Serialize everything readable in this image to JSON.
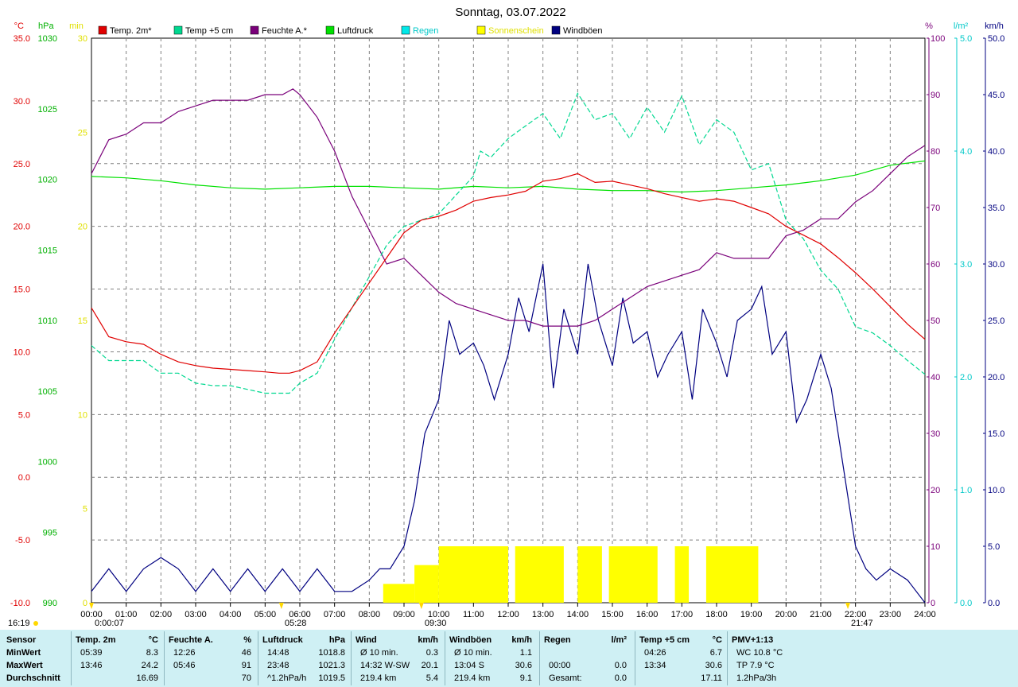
{
  "title": "Sonntag, 03.07.2022",
  "colors": {
    "temp2m": "#e00000",
    "temp5cm": "#00d890",
    "humidity": "#7a007a",
    "pressure": "#00e000",
    "rain": "#00e8e8",
    "sunshine": "#ffff00",
    "gusts": "#000080",
    "grid": "#808080",
    "stats_bg": "#cff0f4"
  },
  "axes": {
    "temp": {
      "unit": "°C",
      "min": -10,
      "max": 35,
      "ticks": [
        "35.0",
        "30.0",
        "25.0",
        "20.0",
        "15.0",
        "10.0",
        "5.0",
        "0.0",
        "-5.0",
        "-10.0"
      ]
    },
    "pressure": {
      "unit": "hPa",
      "min": 990,
      "max": 1030,
      "ticks": [
        "1030",
        "1025",
        "1020",
        "1015",
        "1010",
        "1005",
        "1000",
        "995",
        "990"
      ]
    },
    "sunshine": {
      "unit": "min",
      "min": 0,
      "max": 30,
      "ticks": [
        "30",
        "25",
        "20",
        "15",
        "10",
        "5",
        "0"
      ]
    },
    "humidity": {
      "unit": "%",
      "min": 0,
      "max": 100,
      "ticks": [
        "100",
        "90",
        "80",
        "70",
        "60",
        "50",
        "40",
        "30",
        "20",
        "10",
        "0"
      ]
    },
    "rain": {
      "unit": "l/m²",
      "min": 0,
      "max": 5,
      "ticks": [
        "5.0",
        "4.0",
        "3.0",
        "2.0",
        "1.0",
        "0.0"
      ]
    },
    "wind": {
      "unit": "km/h",
      "min": 0,
      "max": 50,
      "ticks": [
        "50.0",
        "45.0",
        "40.0",
        "35.0",
        "30.0",
        "25.0",
        "20.0",
        "15.0",
        "10.0",
        "5.0",
        "0.0"
      ]
    },
    "x_ticks": [
      "00:00",
      "01:00",
      "02:00",
      "03:00",
      "04:00",
      "05:00",
      "06:00",
      "07:00",
      "08:00",
      "09:00",
      "10:00",
      "11:00",
      "12:00",
      "13:00",
      "14:00",
      "15:00",
      "16:00",
      "17:00",
      "18:00",
      "19:00",
      "20:00",
      "21:00",
      "22:00",
      "23:00",
      "24:00"
    ]
  },
  "legend": [
    {
      "label": "Temp. 2m*",
      "key": "temp2m"
    },
    {
      "label": "Temp +5 cm",
      "key": "temp5cm"
    },
    {
      "label": "Feuchte A.*",
      "key": "humidity"
    },
    {
      "label": "Luftdruck",
      "key": "pressure"
    },
    {
      "label": "Regen",
      "key": "rain"
    },
    {
      "label": "Sonnenschein",
      "key": "sunshine"
    },
    {
      "label": "Windböen",
      "key": "gusts"
    }
  ],
  "time_marks": [
    {
      "label": "0:00:07",
      "hour": 0.0
    },
    {
      "label": "05:28",
      "hour": 5.47
    },
    {
      "label": "09:30",
      "hour": 9.5
    },
    {
      "label": "16:19",
      "hour": -1
    },
    {
      "label": "21:47",
      "hour": 21.78
    }
  ],
  "chart_data": {
    "type": "line",
    "x_unit": "hour",
    "series": [
      {
        "name": "Temp. 2m*",
        "axis": "temp",
        "x": [
          0,
          0.5,
          1,
          1.5,
          2,
          2.5,
          3,
          3.5,
          4,
          4.5,
          5,
          5.4,
          5.7,
          6,
          6.5,
          7,
          7.5,
          8,
          8.5,
          9,
          9.5,
          10,
          10.5,
          11,
          11.5,
          12,
          12.5,
          13,
          13.5,
          14,
          14.5,
          15,
          15.5,
          16,
          16.5,
          17,
          17.5,
          18,
          18.5,
          19,
          19.5,
          20,
          20.5,
          21,
          21.5,
          22,
          22.5,
          23,
          23.5,
          24
        ],
        "y": [
          13.5,
          11.2,
          10.8,
          10.6,
          9.8,
          9.2,
          8.9,
          8.7,
          8.6,
          8.5,
          8.4,
          8.3,
          8.3,
          8.5,
          9.2,
          11.5,
          13.5,
          15.5,
          17.5,
          19.5,
          20.5,
          20.8,
          21.3,
          22.0,
          22.3,
          22.5,
          22.8,
          23.6,
          23.8,
          24.2,
          23.5,
          23.6,
          23.3,
          23.0,
          22.6,
          22.3,
          22.0,
          22.2,
          22.0,
          21.5,
          21.0,
          20.0,
          19.3,
          18.6,
          17.5,
          16.3,
          15.0,
          13.6,
          12.2,
          11.0
        ]
      },
      {
        "name": "Temp +5 cm",
        "axis": "temp",
        "x": [
          0,
          0.5,
          1,
          1.5,
          2,
          2.5,
          3,
          3.5,
          4,
          4.5,
          5,
          5.4,
          5.7,
          6,
          6.5,
          7,
          7.5,
          8,
          8.5,
          9,
          9.5,
          10,
          10.5,
          11,
          11.2,
          11.5,
          12,
          12.5,
          13,
          13.5,
          14,
          14.5,
          15,
          15.5,
          16,
          16.5,
          17,
          17.5,
          18,
          18.5,
          19,
          19.5,
          20,
          20.5,
          21,
          21.5,
          22,
          22.5,
          23,
          23.5,
          24
        ],
        "y": [
          10.5,
          9.3,
          9.3,
          9.3,
          8.3,
          8.3,
          7.5,
          7.3,
          7.3,
          7.0,
          6.7,
          6.7,
          6.7,
          7.5,
          8.3,
          11.0,
          13.5,
          16.0,
          18.5,
          20.0,
          20.5,
          21.0,
          22.5,
          24.0,
          26.0,
          25.5,
          27.0,
          28.0,
          29.0,
          27.0,
          30.6,
          28.5,
          29.0,
          27.0,
          29.5,
          27.5,
          30.4,
          26.5,
          28.5,
          27.5,
          24.5,
          25.0,
          20.5,
          19.0,
          16.5,
          15.0,
          12.0,
          11.5,
          10.5,
          9.3,
          8.2
        ]
      },
      {
        "name": "Feuchte A.*",
        "axis": "humidity",
        "x": [
          0,
          0.5,
          1,
          1.5,
          2,
          2.5,
          3,
          3.5,
          4,
          4.5,
          5,
          5.5,
          5.8,
          6,
          6.5,
          7,
          7.5,
          8,
          8.5,
          9,
          9.5,
          10,
          10.5,
          11,
          11.5,
          12,
          12.5,
          13,
          13.5,
          14,
          14.5,
          15,
          15.5,
          16,
          16.5,
          17,
          17.5,
          18,
          18.5,
          19,
          19.5,
          20,
          20.5,
          21,
          21.5,
          22,
          22.5,
          23,
          23.5,
          24
        ],
        "y": [
          76,
          82,
          83,
          85,
          85,
          87,
          88,
          89,
          89,
          89,
          90,
          90,
          91,
          90,
          86,
          80,
          72,
          66,
          60,
          61,
          58,
          55,
          53,
          52,
          51,
          50,
          50,
          49,
          49,
          49,
          50,
          52,
          54,
          56,
          57,
          58,
          59,
          62,
          61,
          61,
          61,
          65,
          66,
          68,
          68,
          71,
          73,
          76,
          79,
          81
        ]
      },
      {
        "name": "Luftdruck",
        "axis": "pressure",
        "x": [
          0,
          1,
          2,
          3,
          4,
          5,
          6,
          7,
          8,
          9,
          10,
          11,
          12,
          13,
          14,
          15,
          16,
          17,
          18,
          19,
          20,
          21,
          22,
          23,
          24
        ],
        "y": [
          1020.2,
          1020.1,
          1019.9,
          1019.6,
          1019.4,
          1019.3,
          1019.4,
          1019.5,
          1019.5,
          1019.4,
          1019.3,
          1019.5,
          1019.4,
          1019.5,
          1019.3,
          1019.2,
          1019.2,
          1019.1,
          1019.2,
          1019.4,
          1019.6,
          1019.9,
          1020.3,
          1021.0,
          1021.3
        ]
      },
      {
        "name": "Windböen",
        "axis": "wind",
        "x": [
          0,
          0.5,
          1,
          1.5,
          2,
          2.5,
          3,
          3.5,
          4,
          4.5,
          5,
          5.5,
          6,
          6.5,
          7,
          7.5,
          8,
          8.3,
          8.6,
          9,
          9.3,
          9.6,
          10,
          10.3,
          10.6,
          11,
          11.3,
          11.6,
          12,
          12.3,
          12.6,
          13,
          13.3,
          13.6,
          14,
          14.3,
          14.6,
          15,
          15.3,
          15.6,
          16,
          16.3,
          16.6,
          17,
          17.3,
          17.6,
          18,
          18.3,
          18.6,
          19,
          19.3,
          19.6,
          20,
          20.3,
          20.6,
          21,
          21.3,
          21.6,
          22,
          22.3,
          22.6,
          23,
          23.5,
          24
        ],
        "y": [
          1,
          3,
          1,
          3,
          4,
          3,
          1,
          3,
          1,
          3,
          1,
          3,
          1,
          3,
          1,
          1,
          2,
          3,
          3,
          5,
          9,
          15,
          18,
          25,
          22,
          23,
          21,
          18,
          22,
          27,
          24,
          30,
          19,
          26,
          22,
          30,
          25,
          21,
          27,
          23,
          24,
          20,
          22,
          24,
          18,
          26,
          23,
          20,
          25,
          26,
          28,
          22,
          24,
          16,
          18,
          22,
          19,
          13,
          5,
          3,
          2,
          3,
          2,
          0
        ]
      }
    ],
    "sunshine_bars": {
      "axis": "sunshine",
      "ranges": [
        [
          8.4,
          9.3,
          1
        ],
        [
          9.3,
          10.0,
          2
        ],
        [
          10.0,
          12.0,
          3
        ],
        [
          12.2,
          13.6,
          3
        ],
        [
          14.0,
          14.7,
          3
        ],
        [
          14.9,
          16.3,
          3
        ],
        [
          16.8,
          17.2,
          3
        ],
        [
          17.7,
          19.2,
          3
        ]
      ],
      "y_top": 2
    }
  },
  "stats": {
    "columns": [
      {
        "header": [
          "Sensor",
          ""
        ],
        "rows": [
          [
            "MinWert",
            ""
          ],
          [
            "MaxWert",
            ""
          ],
          [
            "Durchschnitt",
            ""
          ]
        ]
      },
      {
        "header": [
          "Temp. 2m",
          "°C"
        ],
        "rows": [
          [
            "05:39",
            "8.3"
          ],
          [
            "13:46",
            "24.2"
          ],
          [
            "",
            "16.69"
          ]
        ]
      },
      {
        "header": [
          "Feuchte A.",
          "%"
        ],
        "rows": [
          [
            "12:26",
            "46"
          ],
          [
            "05:46",
            "91"
          ],
          [
            "",
            "70"
          ]
        ]
      },
      {
        "header": [
          "Luftdruck",
          "hPa"
        ],
        "rows": [
          [
            "14:48",
            "1018.8"
          ],
          [
            "23:48",
            "1021.3"
          ],
          [
            "^1.2hPa/h",
            "1019.5"
          ]
        ]
      },
      {
        "header": [
          "Wind",
          "km/h"
        ],
        "rows": [
          [
            "Ø 10 min.",
            "0.3"
          ],
          [
            "14:32   W-SW",
            "20.1"
          ],
          [
            "219.4 km",
            "5.4"
          ]
        ]
      },
      {
        "header": [
          "Windböen",
          "km/h"
        ],
        "rows": [
          [
            "Ø 10 min.",
            "1.1"
          ],
          [
            "13:04       S",
            "30.6"
          ],
          [
            "219.4 km",
            "9.1"
          ]
        ]
      },
      {
        "header": [
          "Regen",
          "l/m²"
        ],
        "rows": [
          [
            "",
            ""
          ],
          [
            "00:00",
            "0.0"
          ],
          [
            "Gesamt:",
            "0.0"
          ]
        ]
      },
      {
        "header": [
          "Temp +5 cm",
          "°C"
        ],
        "rows": [
          [
            "04:26",
            "6.7"
          ],
          [
            "13:34",
            "30.6"
          ],
          [
            "",
            "17.11"
          ]
        ]
      },
      {
        "header": [
          "PMV+1:13",
          ""
        ],
        "rows": [
          [
            "WC 10.8 °C",
            ""
          ],
          [
            "TP 7.9 °C",
            ""
          ],
          [
            "1.2hPa/3h",
            ""
          ]
        ]
      }
    ]
  }
}
